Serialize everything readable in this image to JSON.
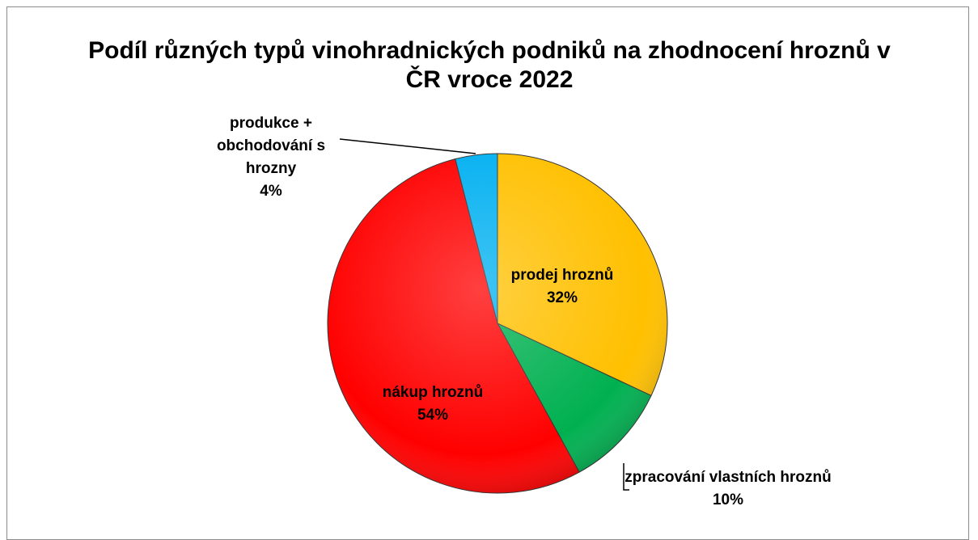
{
  "chart_data": {
    "type": "pie",
    "title": "Podíl různých typů vinohradnických podniků na zhodnocení hroznů v ČR vroce 2022",
    "categories": [
      "prodej hroznů",
      "zpracování vlastních hroznů",
      "nákup hroznů",
      "produkce + obchodování s hrozny"
    ],
    "values": [
      32,
      10,
      54,
      4
    ],
    "value_labels": [
      "32%",
      "10%",
      "54%",
      "4%"
    ],
    "colors": [
      "#ffc000",
      "#00b050",
      "#ff0000",
      "#00b0f0"
    ]
  }
}
